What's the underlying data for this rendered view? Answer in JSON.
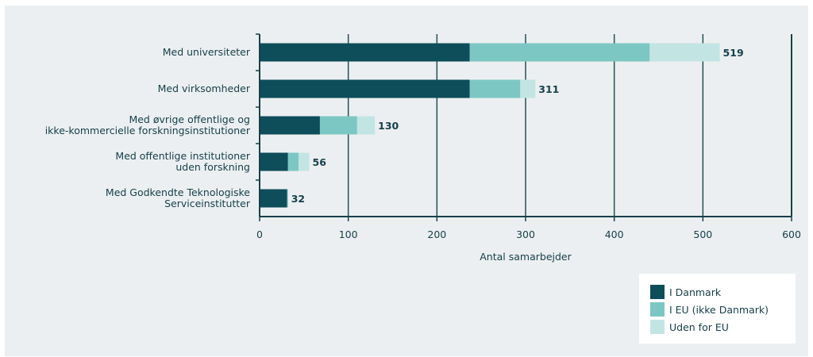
{
  "chart_data": {
    "type": "bar",
    "orientation": "horizontal",
    "stacked": true,
    "categories": [
      [
        "Med universiteter"
      ],
      [
        "Med virksomheder"
      ],
      [
        "Med øvrige offentlige og",
        "ikke-kommercielle forskningsinstitutioner"
      ],
      [
        "Med offentlige institutioner",
        "uden forskning"
      ],
      [
        "Med Godkendte Teknologiske",
        "Serviceinstitutter"
      ]
    ],
    "series": [
      {
        "name": "I Danmark",
        "color": "#0e4d5a",
        "values": [
          237,
          237,
          68,
          32,
          31
        ]
      },
      {
        "name": "I EU (ikke Danmark)",
        "color": "#7cc7c3",
        "values": [
          203,
          57,
          42,
          12,
          1
        ]
      },
      {
        "name": "Uden for EU",
        "color": "#c2e5e3",
        "values": [
          79,
          17,
          20,
          12,
          0
        ]
      }
    ],
    "totals": [
      "519",
      "311",
      "130",
      "56",
      "32"
    ],
    "xlabel": "Antal samarbejder",
    "xlim": [
      0,
      600
    ],
    "xticks": [
      "0",
      "100",
      "200",
      "300",
      "400",
      "500",
      "600"
    ],
    "grid": true,
    "legend_position": "bottom-right"
  }
}
